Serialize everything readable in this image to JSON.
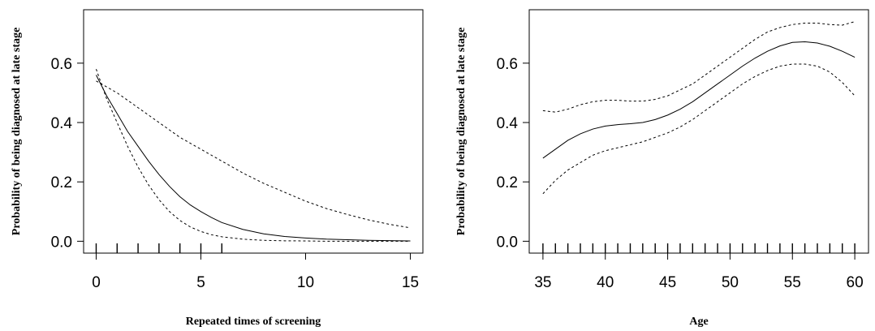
{
  "chart_data": [
    {
      "type": "line",
      "xlabel": "Repeated times of screening",
      "ylabel": "Probability of being diagnosed at late stage",
      "xlim": [
        -0.6,
        15.6
      ],
      "ylim": [
        -0.04,
        0.78
      ],
      "xticks": [
        0,
        5,
        10,
        15
      ],
      "yticks": [
        0.0,
        0.2,
        0.4,
        0.6
      ],
      "xtick_labels": [
        "0",
        "5",
        "10",
        "15"
      ],
      "ytick_labels": [
        "0.0",
        "0.2",
        "0.4",
        "0.6"
      ],
      "rug": [
        0,
        1,
        2,
        3,
        4,
        5,
        6
      ],
      "series": [
        {
          "style": "solid",
          "x": [
            0,
            0.5,
            1,
            1.5,
            2,
            2.5,
            3,
            3.5,
            4,
            4.5,
            5,
            5.5,
            6,
            7,
            8,
            9,
            10,
            11,
            12,
            13,
            14,
            15
          ],
          "y": [
            0.56,
            0.49,
            0.43,
            0.37,
            0.32,
            0.27,
            0.225,
            0.185,
            0.15,
            0.122,
            0.1,
            0.08,
            0.063,
            0.04,
            0.025,
            0.016,
            0.011,
            0.007,
            0.005,
            0.003,
            0.002,
            0.001
          ]
        },
        {
          "style": "dashed",
          "x": [
            0,
            0.5,
            1,
            1.5,
            2,
            2.5,
            3,
            3.5,
            4,
            4.5,
            5,
            5.5,
            6,
            7,
            8,
            9,
            10,
            11,
            12,
            13,
            14,
            15
          ],
          "y": [
            0.58,
            0.48,
            0.4,
            0.32,
            0.25,
            0.19,
            0.14,
            0.1,
            0.07,
            0.048,
            0.033,
            0.022,
            0.015,
            0.007,
            0.003,
            0.0015,
            0.001,
            0.0,
            0.0,
            0.0,
            0.0,
            0.0
          ]
        },
        {
          "style": "dashed",
          "x": [
            0,
            1,
            2,
            3,
            4,
            5,
            6,
            7,
            8,
            9,
            10,
            11,
            12,
            13,
            14,
            15
          ],
          "y": [
            0.54,
            0.5,
            0.45,
            0.4,
            0.35,
            0.31,
            0.27,
            0.23,
            0.195,
            0.165,
            0.135,
            0.11,
            0.09,
            0.072,
            0.057,
            0.045
          ]
        }
      ]
    },
    {
      "type": "line",
      "xlabel": "Age",
      "ylabel": "Probability of being diagnosed at late stage",
      "xlim": [
        33.9,
        61.1
      ],
      "ylim": [
        -0.04,
        0.78
      ],
      "xticks": [
        35,
        40,
        45,
        50,
        55,
        60
      ],
      "yticks": [
        0.0,
        0.2,
        0.4,
        0.6
      ],
      "xtick_labels": [
        "35",
        "40",
        "45",
        "50",
        "55",
        "60"
      ],
      "ytick_labels": [
        "0.0",
        "0.2",
        "0.4",
        "0.6"
      ],
      "rug": [
        35,
        36,
        37,
        38,
        39,
        40,
        41,
        42,
        43,
        44,
        45,
        46,
        47,
        48,
        49,
        50,
        51,
        52,
        53,
        54,
        55,
        56,
        57,
        58,
        59,
        60
      ],
      "series": [
        {
          "style": "solid",
          "x": [
            35,
            36,
            37,
            38,
            39,
            40,
            41,
            42,
            43,
            44,
            45,
            46,
            47,
            48,
            49,
            50,
            51,
            52,
            53,
            54,
            55,
            56,
            57,
            58,
            59,
            60
          ],
          "y": [
            0.28,
            0.31,
            0.34,
            0.362,
            0.378,
            0.388,
            0.393,
            0.396,
            0.4,
            0.41,
            0.425,
            0.445,
            0.47,
            0.5,
            0.53,
            0.56,
            0.59,
            0.617,
            0.64,
            0.658,
            0.67,
            0.672,
            0.668,
            0.657,
            0.64,
            0.62
          ]
        },
        {
          "style": "dashed",
          "x": [
            35,
            36,
            37,
            38,
            39,
            40,
            41,
            42,
            43,
            44,
            45,
            46,
            47,
            48,
            49,
            50,
            51,
            52,
            53,
            54,
            55,
            56,
            57,
            58,
            59,
            60
          ],
          "y": [
            0.44,
            0.435,
            0.445,
            0.46,
            0.47,
            0.475,
            0.475,
            0.472,
            0.472,
            0.478,
            0.49,
            0.51,
            0.53,
            0.56,
            0.59,
            0.62,
            0.65,
            0.68,
            0.705,
            0.72,
            0.73,
            0.735,
            0.735,
            0.73,
            0.728,
            0.74
          ]
        },
        {
          "style": "dashed",
          "x": [
            35,
            36,
            37,
            38,
            39,
            40,
            41,
            42,
            43,
            44,
            45,
            46,
            47,
            48,
            49,
            50,
            51,
            52,
            53,
            54,
            55,
            56,
            57,
            58,
            59,
            60
          ],
          "y": [
            0.16,
            0.205,
            0.24,
            0.265,
            0.29,
            0.305,
            0.315,
            0.325,
            0.335,
            0.35,
            0.365,
            0.385,
            0.41,
            0.44,
            0.47,
            0.5,
            0.53,
            0.555,
            0.575,
            0.59,
            0.597,
            0.597,
            0.59,
            0.57,
            0.535,
            0.49
          ]
        }
      ]
    }
  ]
}
